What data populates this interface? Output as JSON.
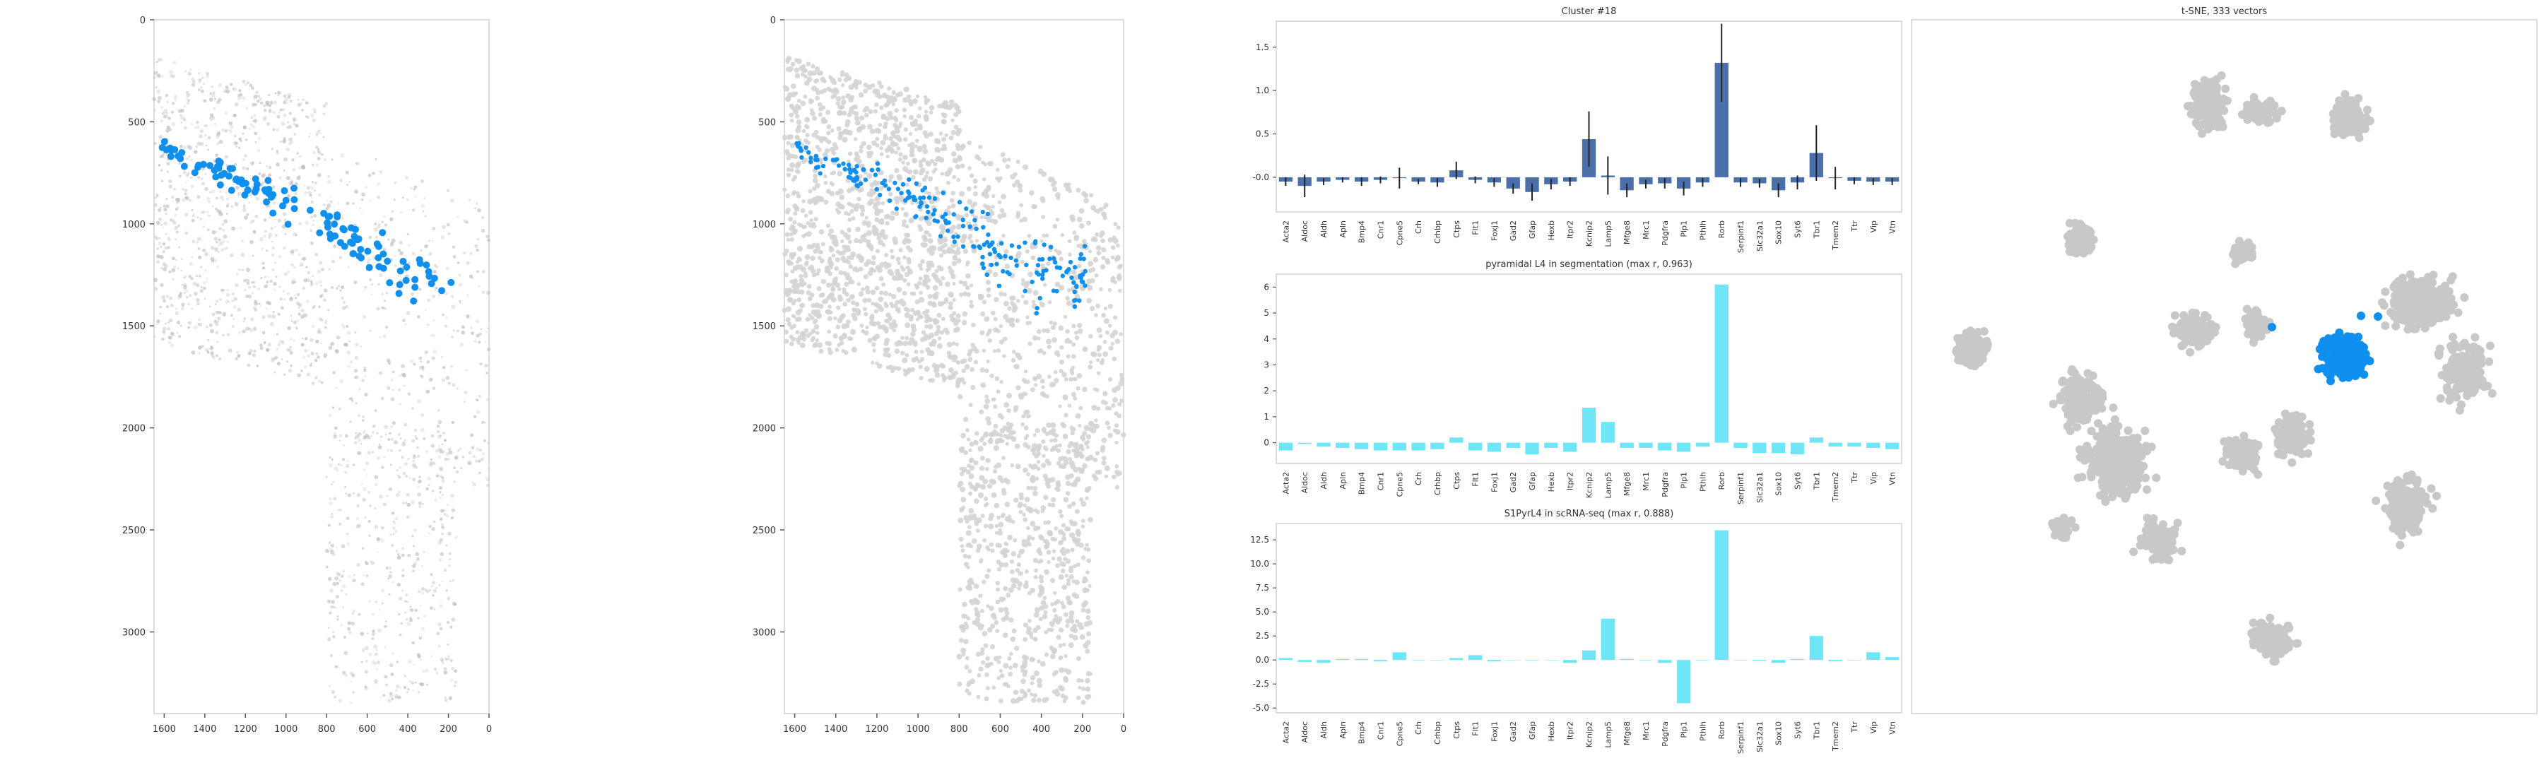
{
  "colors": {
    "highlight": "#0f8fee",
    "background_dots": "#d4d4d4",
    "tsne_dots": "#c8c8c8",
    "cluster_bars": "#4a6fab",
    "cyan_bars": "#6ee6f7",
    "frame": "#dddddd"
  },
  "chart_data": [
    {
      "type": "scatter",
      "panel": "tissue-raw",
      "xlim": [
        1650,
        0
      ],
      "ylim": [
        3400,
        0
      ],
      "xticks": [
        1600,
        1400,
        1200,
        1000,
        800,
        600,
        400,
        200,
        0
      ],
      "yticks": [
        0,
        500,
        1000,
        1500,
        2000,
        2500,
        3000
      ],
      "background": "grayscale tissue image",
      "highlight_band": [
        [
          1600,
          620
        ],
        [
          1500,
          690
        ],
        [
          1400,
          720
        ],
        [
          1200,
          800
        ],
        [
          1000,
          890
        ],
        [
          800,
          1000
        ],
        [
          600,
          1100
        ],
        [
          400,
          1200
        ],
        [
          200,
          1230
        ]
      ],
      "highlight_points": 120
    },
    {
      "type": "scatter",
      "panel": "tissue-segmentation",
      "xlim": [
        1650,
        0
      ],
      "ylim": [
        3400,
        0
      ],
      "xticks": [
        1600,
        1400,
        1200,
        1000,
        800,
        600,
        400,
        200,
        0
      ],
      "yticks": [
        0,
        500,
        1000,
        1500,
        2000,
        2500,
        3000
      ],
      "background": "segmented cells",
      "highlight_band": [
        [
          1600,
          620
        ],
        [
          1500,
          690
        ],
        [
          1400,
          720
        ],
        [
          1200,
          800
        ],
        [
          1000,
          890
        ],
        [
          800,
          1000
        ],
        [
          600,
          1100
        ],
        [
          400,
          1200
        ],
        [
          200,
          1230
        ]
      ],
      "highlight_points": 200
    },
    {
      "type": "bar",
      "panel": "cluster",
      "title": "Cluster #18",
      "categories": [
        "Acta2",
        "Aldoc",
        "Aldh",
        "Apln",
        "Bmp4",
        "Cnr1",
        "Cpne5",
        "Crh",
        "Crhbp",
        "Ctps",
        "Flt1",
        "Foxj1",
        "Gad2",
        "Gfap",
        "Hexb",
        "Itpr2",
        "Kcnip2",
        "Lamp5",
        "Mfge8",
        "Mrc1",
        "Pdgfra",
        "Plp1",
        "Pthlh",
        "Rorb",
        "Serpinf1",
        "Slc32a1",
        "Sox10",
        "Syt6",
        "Tbr1",
        "Tmem2",
        "Ttr",
        "Vip",
        "Vtn"
      ],
      "values": [
        -0.05,
        -0.1,
        -0.05,
        -0.03,
        -0.05,
        -0.03,
        -0.01,
        -0.05,
        -0.06,
        0.08,
        -0.03,
        -0.06,
        -0.13,
        -0.17,
        -0.08,
        -0.05,
        0.44,
        0.02,
        -0.15,
        -0.08,
        -0.07,
        -0.13,
        -0.06,
        1.32,
        -0.06,
        -0.07,
        -0.15,
        -0.06,
        0.28,
        -0.01,
        -0.04,
        -0.05,
        -0.05
      ],
      "errors": [
        0.05,
        0.13,
        0.04,
        0.03,
        0.05,
        0.04,
        0.12,
        0.03,
        0.05,
        0.1,
        0.04,
        0.05,
        0.06,
        0.1,
        0.06,
        0.05,
        0.32,
        0.22,
        0.08,
        0.05,
        0.06,
        0.08,
        0.05,
        0.45,
        0.05,
        0.05,
        0.08,
        0.08,
        0.32,
        0.13,
        0.04,
        0.04,
        0.04
      ],
      "ylim": [
        -0.4,
        1.8
      ],
      "yticks": [
        "-0.0",
        "0.5",
        "1.0",
        "1.5"
      ],
      "grid": false
    },
    {
      "type": "bar",
      "panel": "segmentation",
      "title": "pyramidal L4 in segmentation (max r, 0.963)",
      "categories": [
        "Acta2",
        "Aldoc",
        "Aldh",
        "Apln",
        "Bmp4",
        "Cnr1",
        "Cpne5",
        "Crh",
        "Crhbp",
        "Ctps",
        "Flt1",
        "Foxj1",
        "Gad2",
        "Gfap",
        "Hexb",
        "Itpr2",
        "Kcnip2",
        "Lamp5",
        "Mfge8",
        "Mrc1",
        "Pdgfra",
        "Plp1",
        "Pthlh",
        "Rorb",
        "Serpinf1",
        "Slc32a1",
        "Sox10",
        "Syt6",
        "Tbr1",
        "Tmem2",
        "Ttr",
        "Vip",
        "Vtn"
      ],
      "values": [
        -0.3,
        -0.05,
        -0.15,
        -0.2,
        -0.25,
        -0.3,
        -0.3,
        -0.3,
        -0.25,
        0.2,
        -0.3,
        -0.35,
        -0.2,
        -0.45,
        -0.2,
        -0.35,
        1.35,
        0.8,
        -0.2,
        -0.2,
        -0.3,
        -0.35,
        -0.15,
        6.1,
        -0.2,
        -0.4,
        -0.4,
        -0.45,
        0.2,
        -0.15,
        -0.15,
        -0.2,
        -0.25
      ],
      "ylim": [
        -0.8,
        6.5
      ],
      "yticks": [
        "0",
        "1",
        "2",
        "3",
        "4",
        "5",
        "6"
      ],
      "grid": false
    },
    {
      "type": "bar",
      "panel": "scrnaseq",
      "title": "S1PyrL4 in scRNA-seq (max r, 0.888)",
      "categories": [
        "Acta2",
        "Aldoc",
        "Aldh",
        "Apln",
        "Bmp4",
        "Cnr1",
        "Cpne5",
        "Crh",
        "Crhbp",
        "Ctps",
        "Flt1",
        "Foxj1",
        "Gad2",
        "Gfap",
        "Hexb",
        "Itpr2",
        "Kcnip2",
        "Lamp5",
        "Mfge8",
        "Mrc1",
        "Pdgfra",
        "Plp1",
        "Pthlh",
        "Rorb",
        "Serpinf1",
        "Slc32a1",
        "Sox10",
        "Syt6",
        "Tbr1",
        "Tmem2",
        "Ttr",
        "Vip",
        "Vtn"
      ],
      "values": [
        0.2,
        -0.2,
        -0.3,
        0.1,
        0.1,
        -0.15,
        0.8,
        0.0,
        0.0,
        0.2,
        0.5,
        -0.15,
        0.0,
        0.0,
        0.0,
        -0.3,
        1.0,
        4.3,
        0.1,
        0.0,
        -0.3,
        -4.5,
        0.0,
        13.5,
        0.0,
        -0.1,
        -0.3,
        0.1,
        2.5,
        -0.15,
        0.0,
        0.8,
        0.3
      ],
      "ylim": [
        -5.5,
        14.2
      ],
      "yticks": [
        "-5.0",
        "-2.5",
        "0.0",
        "2.5",
        "5.0",
        "7.5",
        "10.0",
        "12.5"
      ],
      "grid": false
    },
    {
      "type": "scatter",
      "panel": "tsne",
      "title": "t-SNE, 333 vectors",
      "axes_visible": false,
      "highlight_cluster": "Cluster #18"
    }
  ]
}
